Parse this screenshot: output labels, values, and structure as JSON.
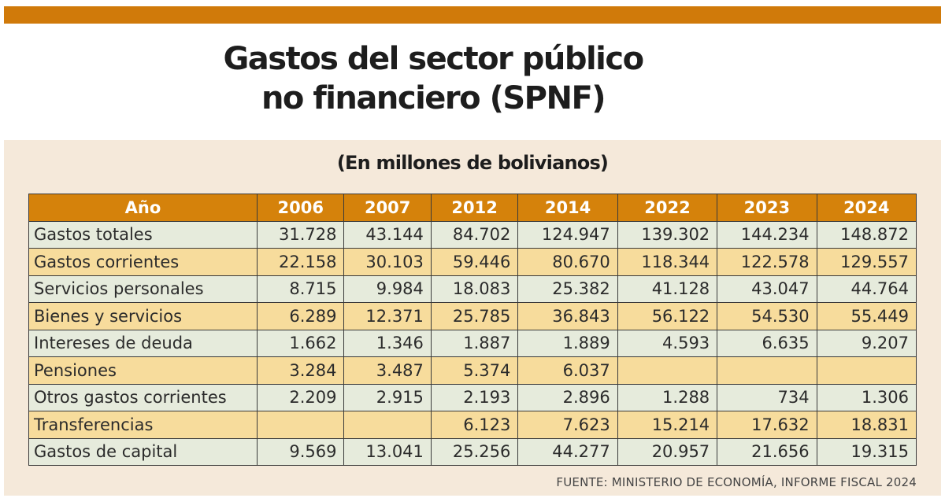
{
  "title_line1": "Gastos del sector público",
  "title_line2": "no financiero (SPNF)",
  "subtitle": "(En millones de bolivianos)",
  "source": "FUENTE: MINISTERIO DE ECONOMÍA, INFORME FISCAL 2024",
  "colors": {
    "accent": "#d07a0a",
    "header": "#d5820b",
    "row_light": "#e6ebdc",
    "row_yellow": "#f7dc9c",
    "panel": "#f5e9da"
  },
  "chart_data": {
    "type": "table",
    "title": "Gastos del sector público no financiero (SPNF)",
    "subtitle": "(En millones de bolivianos)",
    "columns": [
      "Año",
      "2006",
      "2007",
      "2012",
      "2014",
      "2022",
      "2023",
      "2024"
    ],
    "rows": [
      {
        "label": "Gastos totales",
        "values": [
          "31.728",
          "43.144",
          "84.702",
          "124.947",
          "139.302",
          "144.234",
          "148.872"
        ]
      },
      {
        "label": "Gastos corrientes",
        "values": [
          "22.158",
          "30.103",
          "59.446",
          "80.670",
          "118.344",
          "122.578",
          "129.557"
        ]
      },
      {
        "label": "Servicios personales",
        "values": [
          "8.715",
          "9.984",
          "18.083",
          "25.382",
          "41.128",
          "43.047",
          "44.764"
        ]
      },
      {
        "label": "Bienes y servicios",
        "values": [
          "6.289",
          "12.371",
          "25.785",
          "36.843",
          "56.122",
          "54.530",
          "55.449"
        ]
      },
      {
        "label": "Intereses de deuda",
        "values": [
          "1.662",
          "1.346",
          "1.887",
          "1.889",
          "4.593",
          "6.635",
          "9.207"
        ]
      },
      {
        "label": "Pensiones",
        "values": [
          "3.284",
          "3.487",
          "5.374",
          "6.037",
          "",
          "",
          ""
        ]
      },
      {
        "label": "Otros gastos corrientes",
        "values": [
          "2.209",
          "2.915",
          "2.193",
          "2.896",
          "1.288",
          "734",
          "1.306"
        ]
      },
      {
        "label": "Transferencias",
        "values": [
          "",
          "",
          "6.123",
          "7.623",
          "15.214",
          "17.632",
          "18.831"
        ]
      },
      {
        "label": "Gastos de capital",
        "values": [
          "9.569",
          "13.041",
          "25.256",
          "44.277",
          "20.957",
          "21.656",
          "19.315"
        ]
      }
    ],
    "source": "FUENTE: MINISTERIO DE ECONOMÍA, INFORME FISCAL 2024"
  }
}
